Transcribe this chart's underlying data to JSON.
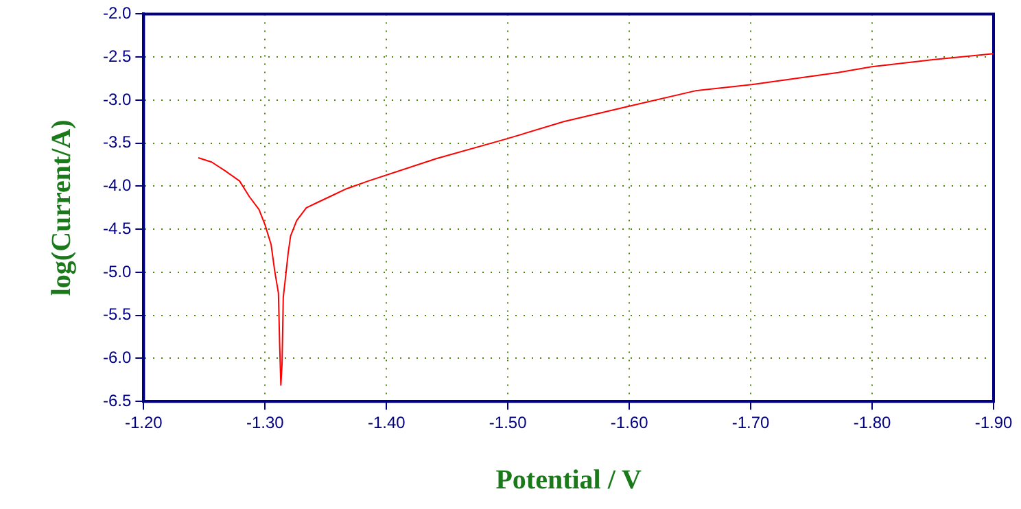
{
  "chart_data": {
    "type": "line",
    "xlabel": "Potential / V",
    "ylabel": "log(Current/A)",
    "xlim": [
      -1.2,
      -1.9
    ],
    "xticks": [
      {
        "value": -1.2,
        "label": "-1.20"
      },
      {
        "value": -1.3,
        "label": "-1.30"
      },
      {
        "value": -1.4,
        "label": "-1.40"
      },
      {
        "value": -1.5,
        "label": "-1.50"
      },
      {
        "value": -1.6,
        "label": "-1.60"
      },
      {
        "value": -1.7,
        "label": "-1.70"
      },
      {
        "value": -1.8,
        "label": "-1.80"
      },
      {
        "value": -1.9,
        "label": "-1.90"
      }
    ],
    "ylim": [
      -6.5,
      -2.0
    ],
    "yticks": [
      {
        "value": -6.5,
        "label": "-6.5"
      },
      {
        "value": -6.0,
        "label": "-6.0"
      },
      {
        "value": -5.5,
        "label": "-5.5"
      },
      {
        "value": -5.0,
        "label": "-5.0"
      },
      {
        "value": -4.5,
        "label": "-4.5"
      },
      {
        "value": -4.0,
        "label": "-4.0"
      },
      {
        "value": -3.5,
        "label": "-3.5"
      },
      {
        "value": -3.0,
        "label": "-3.0"
      },
      {
        "value": -2.5,
        "label": "-2.5"
      },
      {
        "value": -2.0,
        "label": "-2.0"
      }
    ],
    "grid": true,
    "legend": false,
    "marker": "none",
    "line_style": "solid",
    "series": [
      {
        "color": "#ff0000",
        "x": [
          -1.245,
          -1.256,
          -1.267,
          -1.279,
          -1.287,
          -1.295,
          -1.3,
          -1.305,
          -1.308,
          -1.311,
          -1.312,
          -1.313,
          -1.314,
          -1.315,
          -1.317,
          -1.319,
          -1.321,
          -1.326,
          -1.334,
          -1.343,
          -1.355,
          -1.367,
          -1.385,
          -1.441,
          -1.499,
          -1.546,
          -1.6,
          -1.655,
          -1.701,
          -1.772,
          -1.801,
          -1.85,
          -1.9
        ],
        "values": [
          -3.67,
          -3.72,
          -3.82,
          -3.94,
          -4.12,
          -4.27,
          -4.45,
          -4.68,
          -4.99,
          -5.24,
          -5.83,
          -6.31,
          -6.06,
          -5.29,
          -5.04,
          -4.78,
          -4.58,
          -4.4,
          -4.25,
          -4.19,
          -4.11,
          -4.03,
          -3.94,
          -3.68,
          -3.45,
          -3.25,
          -3.07,
          -2.89,
          -2.82,
          -2.68,
          -2.61,
          -2.53,
          -2.46
        ]
      }
    ]
  }
}
